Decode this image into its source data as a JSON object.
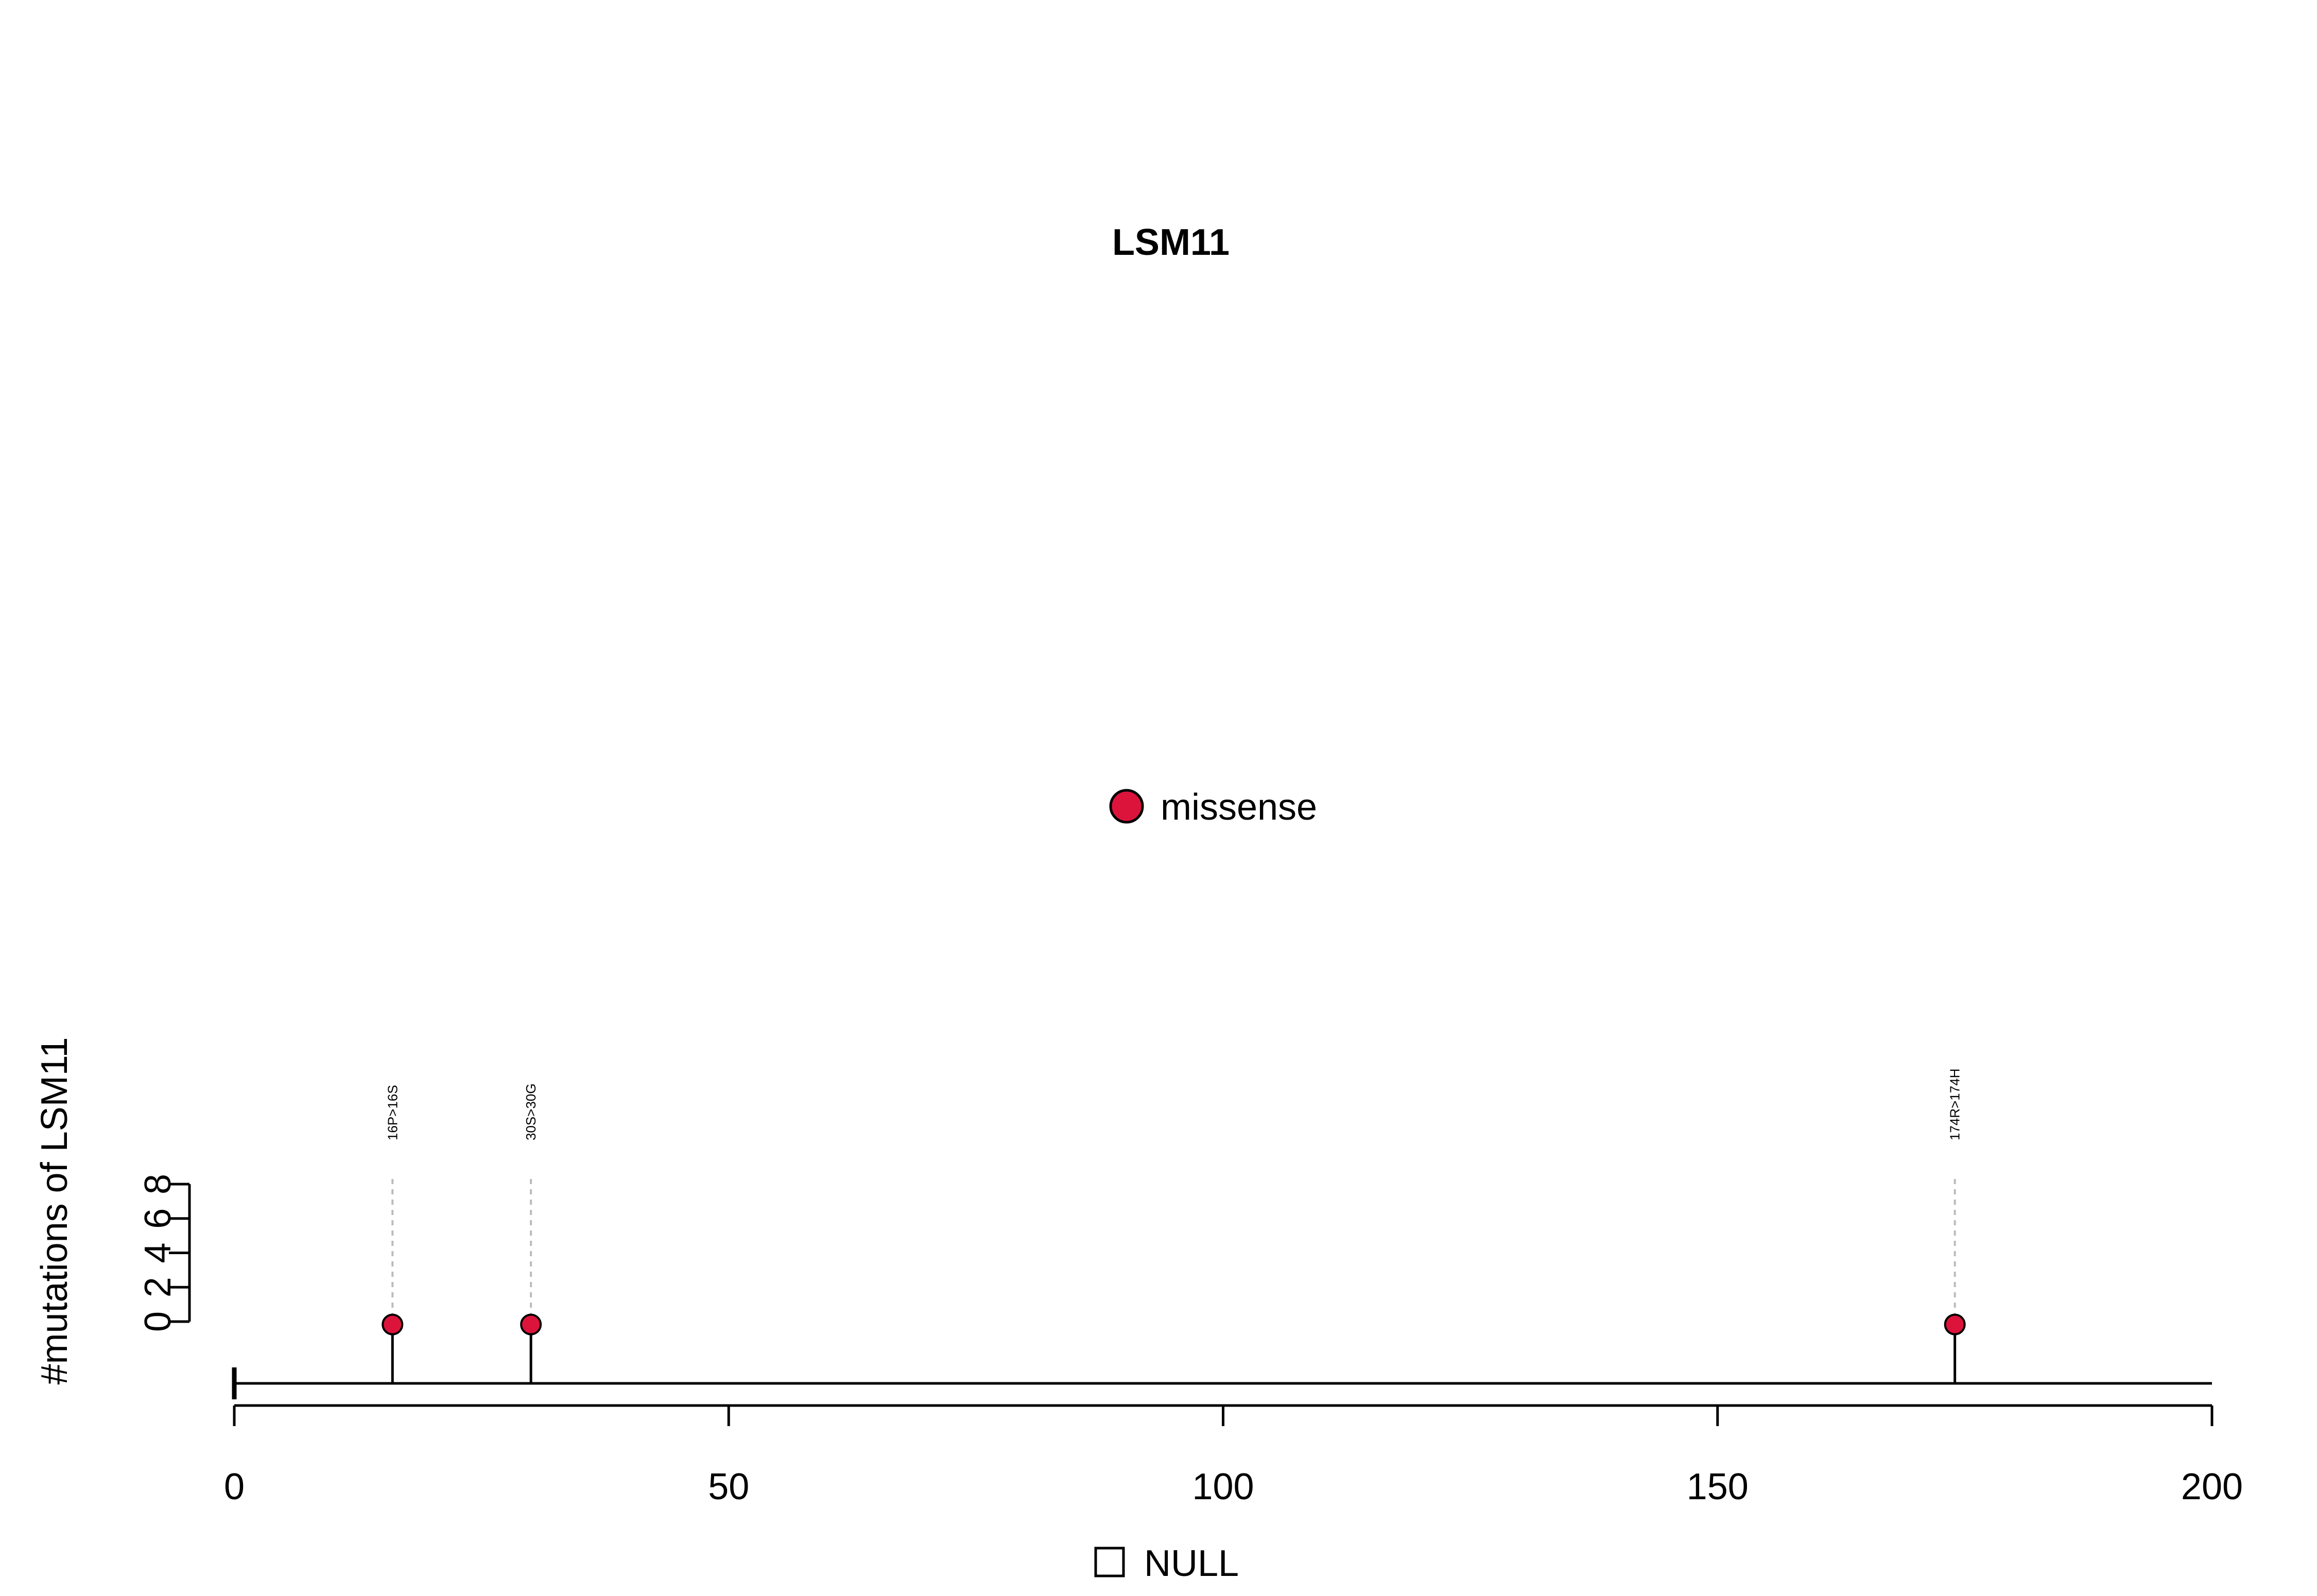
{
  "chart_data": {
    "type": "lollipop",
    "title": "LSM11",
    "ylabel": "#mutations of LSM11",
    "xlabel": "",
    "xlim": [
      0,
      200
    ],
    "x_ticks": [
      0,
      50,
      100,
      150,
      200
    ],
    "ylim": [
      0,
      8
    ],
    "y_ticks": [
      0,
      2,
      4,
      6,
      8
    ],
    "series": [
      {
        "name": "missense",
        "color": "#DC143C",
        "points": [
          {
            "position": 16,
            "count": 1,
            "label": "16P>16S"
          },
          {
            "position": 30,
            "count": 1,
            "label": "30S>30G"
          },
          {
            "position": 174,
            "count": 1,
            "label": "174R>174H"
          }
        ]
      }
    ],
    "legend_top": [
      {
        "label": "missense",
        "color": "#DC143C",
        "symbol": "circle"
      }
    ],
    "legend_bottom": [
      {
        "label": "NULL",
        "color": "#ffffff",
        "symbol": "square"
      }
    ]
  }
}
